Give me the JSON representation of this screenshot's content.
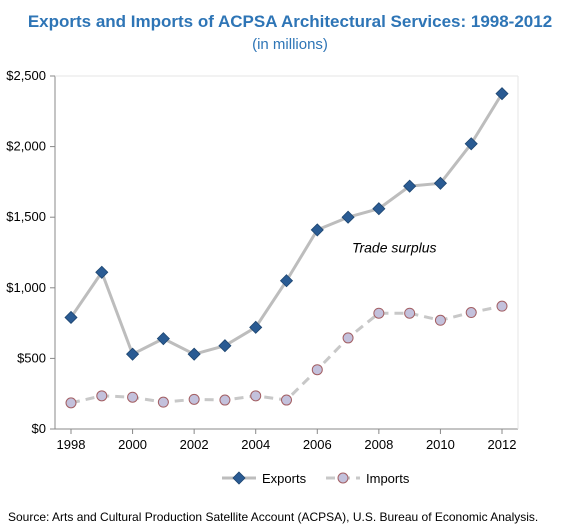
{
  "colors": {
    "title": "#2e75b6",
    "exports_line": "#bdbdbd",
    "exports_marker": "#2a5b93",
    "imports_line": "#c8c8c8",
    "imports_marker_fill": "#c3c1dc",
    "imports_marker_stroke": "#a35f63",
    "axis": "#888888"
  },
  "chart_data": {
    "type": "line",
    "title": "Exports and Imports of ACPSA Architectural Services: 1998-2012",
    "subtitle": "(in millions)",
    "x": [
      1998,
      1999,
      2000,
      2001,
      2002,
      2003,
      2004,
      2005,
      2006,
      2007,
      2008,
      2009,
      2010,
      2011,
      2012
    ],
    "x_tick_labels": [
      "1998",
      "2000",
      "2002",
      "2004",
      "2006",
      "2008",
      "2010",
      "2012"
    ],
    "x_ticks": [
      1998,
      2000,
      2002,
      2004,
      2006,
      2008,
      2010,
      2012
    ],
    "xlim": [
      1998,
      2012
    ],
    "ylim": [
      0,
      2500
    ],
    "y_ticks": [
      0,
      500,
      1000,
      1500,
      2000,
      2500
    ],
    "y_tick_labels": [
      "$0",
      "$500",
      "$1,000",
      "$1,500",
      "$2,000",
      "$2,500"
    ],
    "grid": false,
    "legend_position": "bottom",
    "series": [
      {
        "name": "Exports",
        "values": [
          790,
          1110,
          530,
          640,
          530,
          590,
          720,
          1050,
          1410,
          1500,
          1560,
          1720,
          1740,
          2020,
          2375
        ],
        "style": "solid",
        "marker": "diamond"
      },
      {
        "name": "Imports",
        "values": [
          185,
          235,
          225,
          190,
          210,
          205,
          235,
          205,
          420,
          645,
          820,
          820,
          770,
          825,
          870
        ],
        "style": "dashed",
        "marker": "circle"
      }
    ],
    "annotations": [
      {
        "text": "Trade surplus",
        "x": 2008.5,
        "y": 1250
      }
    ]
  },
  "source": "Source: Arts and Cultural Production Satellite Account (ACPSA), U.S. Bureau of Economic Analysis."
}
